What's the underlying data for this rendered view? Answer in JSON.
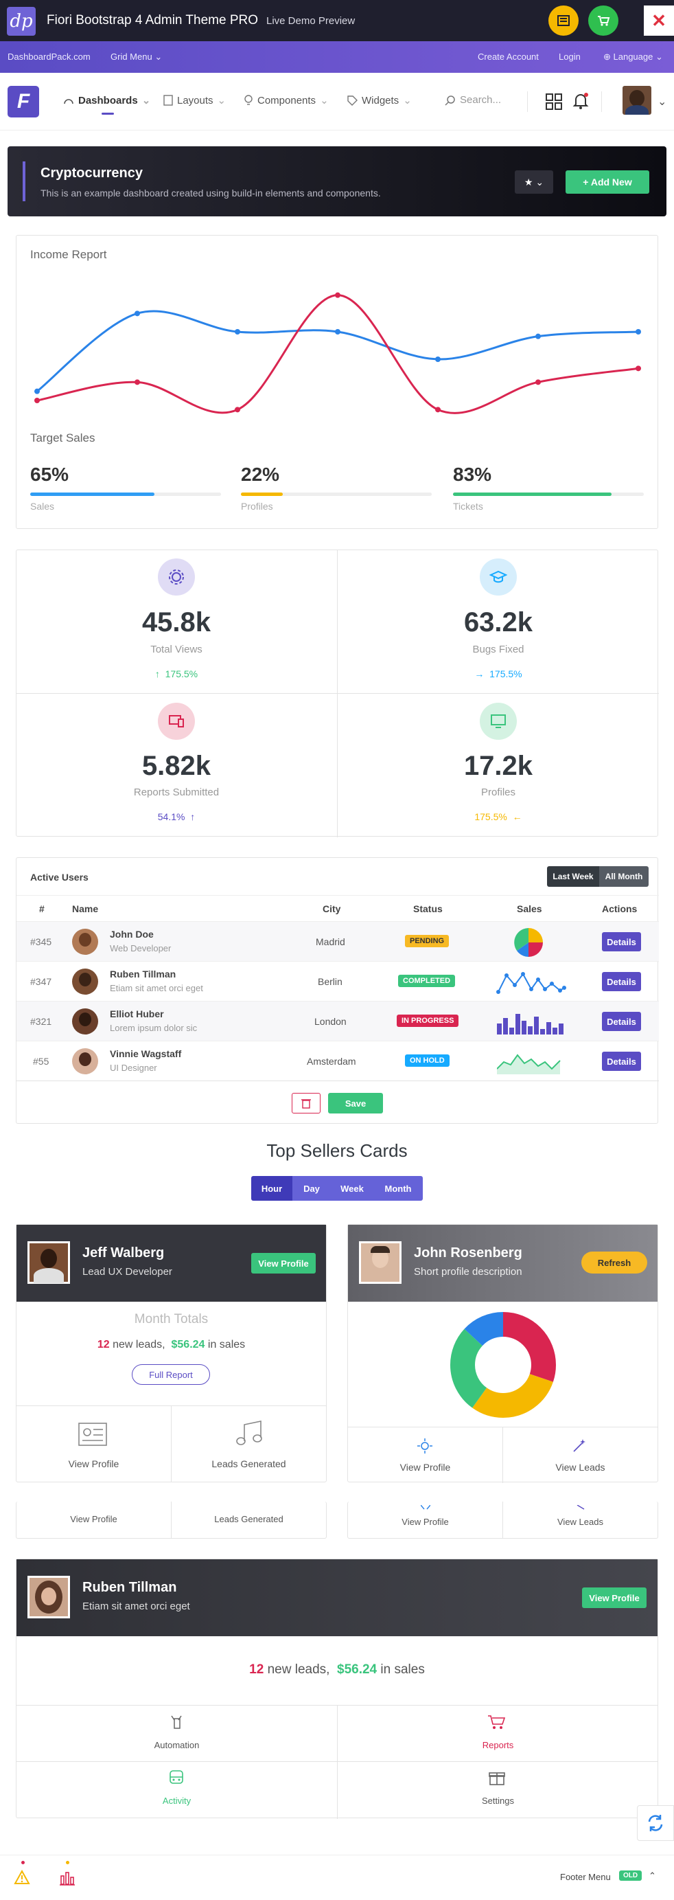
{
  "topbar": {
    "logo": "dp",
    "title": "Fiori Bootstrap 4 Admin Theme PRO",
    "subtitle": "Live Demo Preview",
    "close": "✕",
    "colors": {
      "bg": "#1f1f2e",
      "yellow": "#f5b800",
      "green": "#2fbf4f",
      "red": "#e0313f"
    }
  },
  "subbar": {
    "site": "DashboardPack.com",
    "grid_menu": "Grid Menu",
    "create_account": "Create Account",
    "login": "Login",
    "language": "Language"
  },
  "nav": {
    "brand": "F",
    "items": [
      "Dashboards",
      "Layouts",
      "Components",
      "Widgets"
    ],
    "search_placeholder": "Search..."
  },
  "hero": {
    "title": "Cryptocurrency",
    "subtitle": "This is an example dashboard created using build-in elements and components.",
    "add_new": "+ Add New"
  },
  "income": {
    "title": "Income Report",
    "target_title": "Target Sales",
    "progress": [
      {
        "value": "65%",
        "label": "Sales",
        "fraction": 0.65,
        "color": "#2f9df4"
      },
      {
        "value": "22%",
        "label": "Profiles",
        "fraction": 0.22,
        "color": "#f5b800"
      },
      {
        "value": "83%",
        "label": "Tickets",
        "fraction": 0.83,
        "color": "#3ac47d"
      }
    ]
  },
  "chart_data": {
    "type": "line",
    "title": "Income Report",
    "x": [
      1,
      2,
      3,
      4,
      5,
      6,
      7
    ],
    "series": [
      {
        "values": [
          5,
          22,
          18,
          18,
          12,
          17,
          18
        ],
        "color": "#2a83e8"
      },
      {
        "values": [
          3,
          7,
          1,
          26,
          1,
          7,
          10
        ],
        "color": "#d92550"
      }
    ],
    "ylim": [
      0,
      30
    ],
    "grid": false
  },
  "stats": [
    {
      "value": "45.8k",
      "label": "Total Views",
      "change": "175.5%",
      "arrow": "↑",
      "color": "#3ac47d",
      "icon": "gear-icon"
    },
    {
      "value": "63.2k",
      "label": "Bugs Fixed",
      "change": "175.5%",
      "arrow": "→",
      "color": "#16aaff",
      "icon": "graduation-cap-icon"
    },
    {
      "value": "5.82k",
      "label": "Reports Submitted",
      "change": "54.1%",
      "arrow": "↑",
      "color": "#5a4cc4",
      "icon": "devices-icon"
    },
    {
      "value": "17.2k",
      "label": "Profiles",
      "change": "175.5%",
      "arrow": "←",
      "color": "#f5b800",
      "icon": "monitor-icon"
    }
  ],
  "users": {
    "title": "Active Users",
    "btn_week": "Last Week",
    "btn_month": "All Month",
    "headers": [
      "#",
      "Name",
      "City",
      "Status",
      "Sales",
      "Actions"
    ],
    "rows": [
      {
        "id": "#345",
        "name": "John Doe",
        "role": "Web Developer",
        "city": "Madrid",
        "status": "Pending",
        "status_color": "#f7b924",
        "sales": "pie"
      },
      {
        "id": "#347",
        "name": "Ruben Tillman",
        "role": "Etiam sit amet orci eget",
        "city": "Berlin",
        "status": "Completed",
        "status_color": "#3ac47d",
        "sales": "dots"
      },
      {
        "id": "#321",
        "name": "Elliot Huber",
        "role": "Lorem ipsum dolor sic",
        "city": "London",
        "status": "In Progress",
        "status_color": "#d92550",
        "sales": "bars"
      },
      {
        "id": "#55",
        "name": "Vinnie Wagstaff",
        "role": "UI Designer",
        "city": "Amsterdam",
        "status": "On Hold",
        "status_color": "#16aaff",
        "sales": "area"
      }
    ],
    "details": "Details",
    "save": "Save"
  },
  "sellers": {
    "title": "Top Sellers Cards",
    "segments": [
      "Hour",
      "Day",
      "Week",
      "Month"
    ],
    "jeff": {
      "name": "Jeff Walberg",
      "role": "Lead UX Developer",
      "btn": "View Profile",
      "month_totals": "Month Totals",
      "leads": "12",
      "leads_text": "new leads,",
      "sales": "$56.24",
      "sales_text": "in sales",
      "report": "Full Report",
      "view_profile": "View Profile",
      "leads_generated": "Leads Generated"
    },
    "john": {
      "name": "John Rosenberg",
      "role": "Short profile description",
      "btn": "Refresh",
      "view_profile": "View Profile",
      "view_leads": "View Leads"
    },
    "ruben": {
      "name": "Ruben Tillman",
      "role": "Etiam sit amet orci eget",
      "btn": "View Profile",
      "leads": "12",
      "leads_text": "new leads,",
      "sales": "$56.24",
      "sales_text": "in sales",
      "grid": [
        "Automation",
        "Reports",
        "Activity",
        "Settings"
      ]
    }
  },
  "footer": {
    "menu": "Footer Menu",
    "badge": "OLD"
  }
}
